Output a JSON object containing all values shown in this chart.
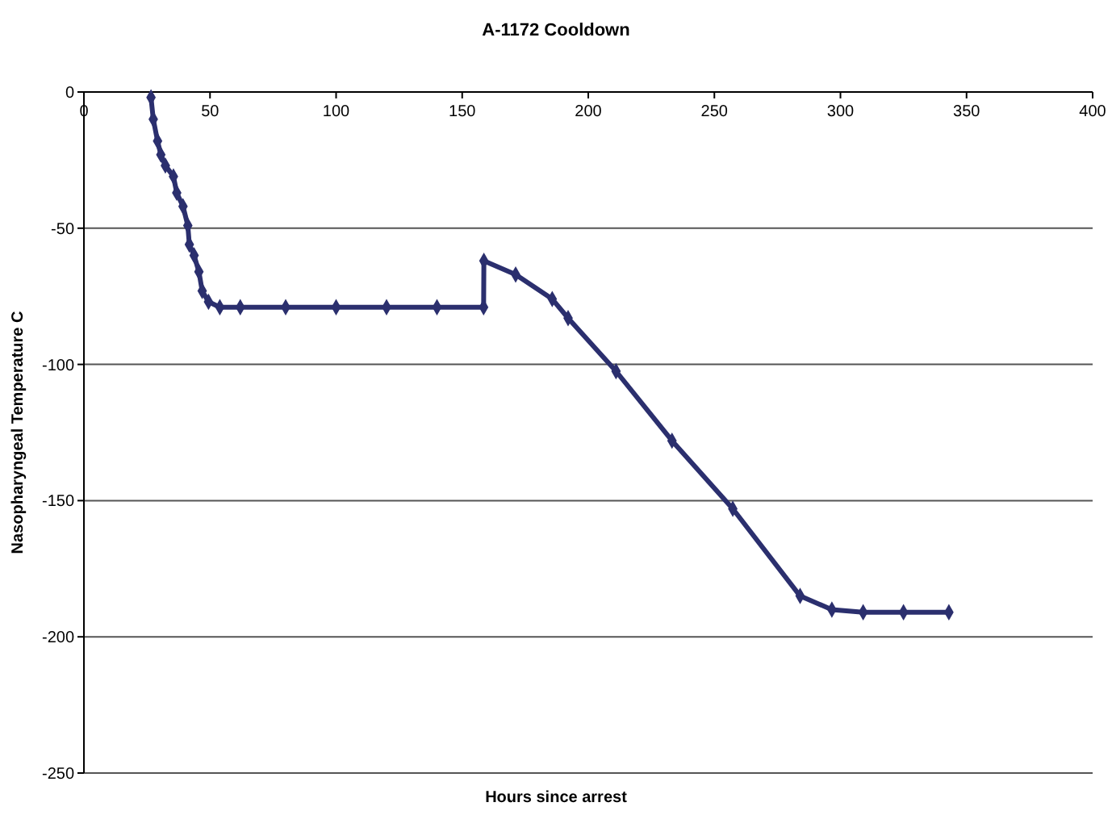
{
  "chart_data": {
    "type": "line",
    "title": "A-1172 Cooldown",
    "xlabel": "Hours since arrest",
    "ylabel": "Nasopharyngeal Temperature C",
    "xlim": [
      0,
      400
    ],
    "xticks": [
      0,
      50,
      100,
      150,
      200,
      250,
      300,
      350,
      400
    ],
    "ylim": [
      -250,
      0
    ],
    "yticks": [
      -250,
      -200,
      -150,
      -100,
      -50,
      0
    ],
    "grid": "y",
    "marker": "diamond",
    "line_style": "solid",
    "series": [
      {
        "color": "#2b2f6e",
        "x": [
          26.6,
          27.5,
          29.2,
          30.5,
          32.3,
          35.5,
          36.8,
          39.3,
          41.2,
          41.8,
          43.7,
          45.6,
          46.9,
          49.4,
          53.9,
          62,
          80,
          100,
          120,
          140,
          158.5,
          158.6,
          171.2,
          185.7,
          192,
          211,
          233.2,
          257.3,
          284,
          296.6,
          309,
          325,
          343
        ],
        "values": [
          -2,
          -10,
          -18,
          -23,
          -27,
          -31,
          -37,
          -42,
          -49,
          -56,
          -60,
          -66,
          -73,
          -77,
          -79,
          -79,
          -79,
          -79,
          -79,
          -79,
          -79,
          -62,
          -67,
          -76,
          -83,
          -102.5,
          -128,
          -153,
          -185,
          -190,
          -191,
          -191,
          -191
        ]
      }
    ]
  }
}
